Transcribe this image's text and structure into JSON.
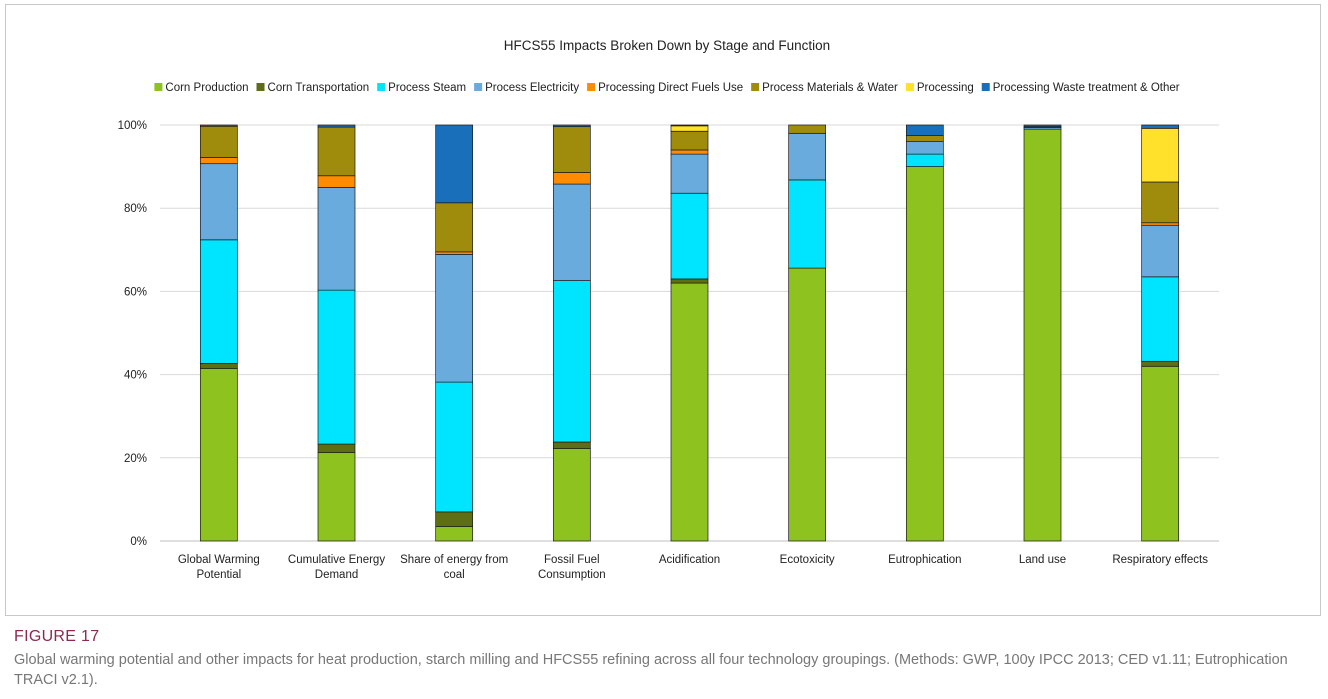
{
  "chart_data": {
    "type": "bar",
    "stacked": true,
    "title": "HFCS55 Impacts Broken Down by Stage and Function",
    "xlabel": "",
    "ylabel": "",
    "ylim": [
      0,
      100
    ],
    "y_ticks": [
      "0%",
      "20%",
      "40%",
      "60%",
      "80%",
      "100%"
    ],
    "grid": true,
    "legend_position": "top",
    "categories": [
      [
        "Global Warming",
        "Potential"
      ],
      [
        "Cumulative Energy",
        "Demand"
      ],
      [
        "Share of energy from",
        "coal"
      ],
      [
        "Fossil Fuel",
        "Consumption"
      ],
      [
        "Acidification"
      ],
      [
        "Ecotoxicity"
      ],
      [
        "Eutrophication"
      ],
      [
        "Land use"
      ],
      [
        "Respiratory effects"
      ]
    ],
    "series": [
      {
        "name": "Corn Production",
        "color": "#8dc21f",
        "values": [
          41.5,
          21.3,
          3.5,
          22.2,
          62.0,
          65.6,
          90.0,
          99.0,
          42.0
        ]
      },
      {
        "name": "Corn Transportation",
        "color": "#5e6e14",
        "values": [
          1.2,
          2.0,
          3.5,
          1.6,
          1.0,
          0,
          0,
          0,
          1.2
        ]
      },
      {
        "name": "Process Steam",
        "color": "#00e5ff",
        "values": [
          29.7,
          37.0,
          31.2,
          38.8,
          20.6,
          21.2,
          3.0,
          0,
          20.3
        ]
      },
      {
        "name": "Process Electricity",
        "color": "#6aabdd",
        "values": [
          18.3,
          24.7,
          30.7,
          23.2,
          9.4,
          11.2,
          3.0,
          0.4,
          12.4
        ]
      },
      {
        "name": "Processing Direct Fuels Use",
        "color": "#ff8c00",
        "values": [
          1.5,
          2.8,
          0.6,
          2.8,
          1.0,
          0,
          0,
          0,
          0.6
        ]
      },
      {
        "name": "Process Materials & Water",
        "color": "#a08c0c",
        "values": [
          7.5,
          11.7,
          11.8,
          11.0,
          4.5,
          2.0,
          1.5,
          0.2,
          9.8
        ]
      },
      {
        "name": "Processing",
        "color": "#ffe02a",
        "values": [
          0,
          0,
          0,
          0,
          1.3,
          0,
          0,
          0,
          12.9
        ]
      },
      {
        "name": "Processing Waste treatment & Other",
        "color": "#1a6fba",
        "values": [
          0.3,
          0.5,
          18.7,
          0.4,
          0.2,
          0,
          2.5,
          0.4,
          0.8
        ]
      }
    ]
  },
  "caption": {
    "label": "FIGURE 17",
    "text": "Global warming potential and other impacts for heat production, starch milling and HFCS55 refining across all four technology groupings. (Methods: GWP, 100y IPCC 2013; CED v1.11; Eutrophication TRACI v2.1)."
  }
}
